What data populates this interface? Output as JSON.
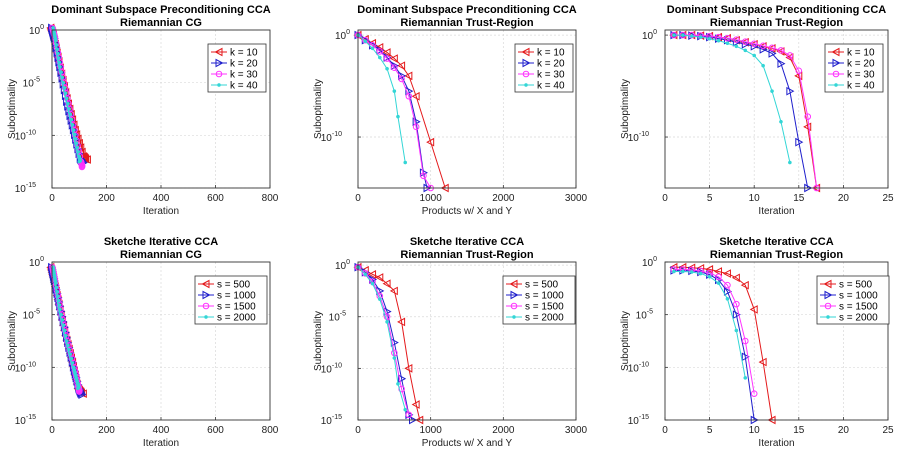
{
  "chart_data": [
    {
      "type": "line",
      "title": "Dominant Subspace Preconditioning CCA",
      "subtitle": "Riemannian CG",
      "xlabel": "Iteration",
      "ylabel": "Suboptimality",
      "xlim": [
        0,
        800
      ],
      "xticks": [
        "0",
        "200",
        "400",
        "600",
        "800"
      ],
      "yscale": "log",
      "ylim_exp": [
        -15,
        0
      ],
      "yticks": [
        {
          "m": "10",
          "e": "0",
          "v": 0
        },
        {
          "m": "10",
          "e": "-5",
          "v": -5
        },
        {
          "m": "10",
          "e": "-10",
          "v": -10
        },
        {
          "m": "10",
          "e": "-15",
          "v": -15
        }
      ],
      "grid": true,
      "legend_position": "top-right",
      "series": [
        {
          "name": "k = 10",
          "color": "#e41a1c",
          "marker": "triangle-left",
          "dense": true,
          "x": [
            0,
            10,
            30,
            60,
            90,
            120,
            130
          ],
          "log10_y": [
            0.2,
            -0.5,
            -3,
            -6.5,
            -9.5,
            -12,
            -12.3
          ]
        },
        {
          "name": "k = 20",
          "color": "#1f1fcc",
          "marker": "triangle-right",
          "dense": true,
          "x": [
            0,
            10,
            30,
            55,
            80,
            105,
            115
          ],
          "log10_y": [
            0.2,
            -0.8,
            -3.5,
            -6.8,
            -9.5,
            -12.2,
            -12.6
          ]
        },
        {
          "name": "k = 30",
          "color": "#ff33ff",
          "marker": "circle",
          "dense": true,
          "x": [
            0,
            10,
            30,
            55,
            80,
            105,
            110
          ],
          "log10_y": [
            0.2,
            -0.8,
            -3.5,
            -6.5,
            -9.5,
            -12.5,
            -13
          ]
        },
        {
          "name": "k = 40",
          "color": "#33d6d6",
          "marker": "dot",
          "dense": true,
          "x": [
            0,
            10,
            25,
            50,
            75,
            95,
            100
          ],
          "log10_y": [
            0.2,
            -1,
            -3.5,
            -6.5,
            -9.5,
            -12,
            -12.5
          ]
        }
      ]
    },
    {
      "type": "line",
      "title": "Dominant Subspace Preconditioning CCA",
      "subtitle": "Riemannian Trust-Region",
      "xlabel": "Products w/ X and Y",
      "ylabel": "Suboptimality",
      "xlim": [
        0,
        3000
      ],
      "xticks": [
        "0",
        "1000",
        "2000",
        "3000"
      ],
      "yscale": "log",
      "ylim_exp": [
        -15,
        0.5
      ],
      "yticks": [
        {
          "m": "10",
          "e": "0",
          "v": 0
        },
        {
          "m": "10",
          "e": "-10",
          "v": -10
        }
      ],
      "grid": true,
      "legend_position": "top-right",
      "series": [
        {
          "name": "k = 10",
          "color": "#e41a1c",
          "marker": "triangle-left",
          "x": [
            0,
            100,
            200,
            300,
            400,
            500,
            600,
            700,
            800,
            1000,
            1200
          ],
          "log10_y": [
            0,
            -0.4,
            -0.8,
            -1.2,
            -1.7,
            -2.3,
            -3,
            -4,
            -6,
            -10.5,
            -15
          ]
        },
        {
          "name": "k = 20",
          "color": "#1f1fcc",
          "marker": "triangle-right",
          "x": [
            0,
            100,
            200,
            300,
            400,
            500,
            600,
            700,
            800,
            900,
            950
          ],
          "log10_y": [
            0,
            -0.5,
            -1,
            -1.5,
            -2.2,
            -3,
            -4,
            -5.5,
            -8.5,
            -13.5,
            -15
          ]
        },
        {
          "name": "k = 30",
          "color": "#ff33ff",
          "marker": "circle",
          "x": [
            0,
            100,
            200,
            300,
            400,
            500,
            600,
            700,
            800,
            900,
            1000
          ],
          "log10_y": [
            0,
            -0.5,
            -1,
            -1.6,
            -2.3,
            -3.2,
            -4.3,
            -6,
            -9,
            -13.8,
            -15
          ]
        },
        {
          "name": "k = 40",
          "color": "#33d6d6",
          "marker": "dot",
          "x": [
            0,
            100,
            200,
            300,
            400,
            500,
            550,
            650
          ],
          "log10_y": [
            0,
            -0.6,
            -1.3,
            -2.2,
            -3.3,
            -5.5,
            -8,
            -12.5
          ]
        }
      ]
    },
    {
      "type": "line",
      "title": "Dominant Subspace Preconditioning CCA",
      "subtitle": "Riemannian Trust-Region",
      "xlabel": "Iteration",
      "ylabel": "Suboptimality",
      "xlim": [
        0,
        25
      ],
      "xticks": [
        "0",
        "5",
        "10",
        "15",
        "20",
        "25"
      ],
      "yscale": "log",
      "ylim_exp": [
        -15,
        0.5
      ],
      "yticks": [
        {
          "m": "10",
          "e": "0",
          "v": 0
        },
        {
          "m": "10",
          "e": "-10",
          "v": -10
        }
      ],
      "grid": true,
      "legend_position": "top-right",
      "series": [
        {
          "name": "k = 10",
          "color": "#e41a1c",
          "marker": "triangle-left",
          "x": [
            1,
            2,
            3,
            4,
            5,
            6,
            7,
            8,
            9,
            10,
            11,
            12,
            13,
            14,
            15,
            16,
            17
          ],
          "log10_y": [
            0,
            0,
            0,
            -0.05,
            -0.1,
            -0.2,
            -0.3,
            -0.5,
            -0.7,
            -0.9,
            -1.1,
            -1.3,
            -1.6,
            -2.2,
            -4,
            -9,
            -15
          ]
        },
        {
          "name": "k = 20",
          "color": "#1f1fcc",
          "marker": "triangle-right",
          "x": [
            1,
            2,
            3,
            4,
            5,
            6,
            7,
            8,
            9,
            10,
            11,
            12,
            13,
            14,
            15,
            16
          ],
          "log10_y": [
            0,
            0,
            -0.05,
            -0.1,
            -0.2,
            -0.35,
            -0.5,
            -0.7,
            -0.9,
            -1.1,
            -1.4,
            -1.8,
            -2.8,
            -5.5,
            -10.5,
            -15
          ]
        },
        {
          "name": "k = 30",
          "color": "#ff33ff",
          "marker": "circle",
          "x": [
            1,
            2,
            3,
            4,
            5,
            6,
            7,
            8,
            9,
            10,
            11,
            12,
            13,
            14,
            15,
            16,
            17
          ],
          "log10_y": [
            0,
            0,
            0,
            -0.05,
            -0.1,
            -0.2,
            -0.3,
            -0.45,
            -0.65,
            -0.85,
            -1.05,
            -1.25,
            -1.5,
            -2,
            -3.5,
            -8,
            -15
          ]
        },
        {
          "name": "k = 40",
          "color": "#33d6d6",
          "marker": "dot",
          "x": [
            1,
            2,
            3,
            4,
            5,
            6,
            7,
            8,
            9,
            10,
            11,
            12,
            13,
            14
          ],
          "log10_y": [
            0,
            0,
            -0.1,
            -0.2,
            -0.35,
            -0.55,
            -0.8,
            -1.1,
            -1.5,
            -2,
            -3,
            -5.5,
            -8.5,
            -12.5
          ]
        }
      ]
    },
    {
      "type": "line",
      "title": "Sketche Iterative CCA",
      "subtitle": "Riemannian CG",
      "xlabel": "Iteration",
      "ylabel": "Suboptimality",
      "xlim": [
        0,
        800
      ],
      "xticks": [
        "0",
        "200",
        "400",
        "600",
        "800"
      ],
      "yscale": "log",
      "ylim_exp": [
        -15,
        0
      ],
      "yticks": [
        {
          "m": "10",
          "e": "0",
          "v": 0
        },
        {
          "m": "10",
          "e": "-5",
          "v": -5
        },
        {
          "m": "10",
          "e": "-10",
          "v": -10
        },
        {
          "m": "10",
          "e": "-15",
          "v": -15
        }
      ],
      "grid": true,
      "legend_position": "top-right",
      "series": [
        {
          "name": "s = 500",
          "color": "#e41a1c",
          "marker": "triangle-left",
          "dense": true,
          "x": [
            0,
            10,
            30,
            55,
            80,
            100,
            115
          ],
          "log10_y": [
            -0.5,
            -1.5,
            -4,
            -7,
            -9.5,
            -12,
            -12.5
          ]
        },
        {
          "name": "s = 1000",
          "color": "#1f1fcc",
          "marker": "triangle-right",
          "dense": true,
          "x": [
            0,
            10,
            30,
            55,
            80,
            100,
            110
          ],
          "log10_y": [
            -0.5,
            -1.8,
            -4.2,
            -7.2,
            -10,
            -12,
            -12.6
          ]
        },
        {
          "name": "s = 1500",
          "color": "#ff33ff",
          "marker": "circle",
          "dense": true,
          "x": [
            0,
            10,
            30,
            55,
            80,
            95,
            100
          ],
          "log10_y": [
            -0.5,
            -1.8,
            -4.5,
            -7.5,
            -10,
            -11.8,
            -12.3
          ]
        },
        {
          "name": "s = 2000",
          "color": "#33d6d6",
          "marker": "dot",
          "dense": true,
          "x": [
            0,
            10,
            25,
            50,
            75,
            90,
            95
          ],
          "log10_y": [
            -0.5,
            -2,
            -4.5,
            -7.5,
            -10,
            -11.5,
            -12
          ]
        }
      ]
    },
    {
      "type": "line",
      "title": "Sketche Iterative CCA",
      "subtitle": "Riemannian Trust-Region",
      "xlabel": "Products w/ X and Y",
      "ylabel": "Suboptimality",
      "xlim": [
        0,
        3000
      ],
      "xticks": [
        "0",
        "1000",
        "2000",
        "3000"
      ],
      "yscale": "log",
      "ylim_exp": [
        -15,
        0.3
      ],
      "yticks": [
        {
          "m": "10",
          "e": "0",
          "v": 0
        },
        {
          "m": "10",
          "e": "-5",
          "v": -5
        },
        {
          "m": "10",
          "e": "-10",
          "v": -10
        },
        {
          "m": "10",
          "e": "-15",
          "v": -15
        }
      ],
      "grid": true,
      "legend_position": "top-right",
      "series": [
        {
          "name": "s = 500",
          "color": "#e41a1c",
          "marker": "triangle-left",
          "x": [
            0,
            100,
            200,
            300,
            400,
            500,
            600,
            700,
            800,
            850
          ],
          "log10_y": [
            -0.2,
            -0.5,
            -0.9,
            -1.2,
            -1.8,
            -2.5,
            -5.5,
            -10,
            -13.5,
            -15
          ]
        },
        {
          "name": "s = 1000",
          "color": "#1f1fcc",
          "marker": "triangle-right",
          "x": [
            0,
            100,
            200,
            300,
            400,
            500,
            600,
            700,
            750
          ],
          "log10_y": [
            -0.2,
            -0.7,
            -1.4,
            -2.5,
            -4.5,
            -7.5,
            -11,
            -14.5,
            -15
          ]
        },
        {
          "name": "s = 1500",
          "color": "#ff33ff",
          "marker": "circle",
          "x": [
            0,
            100,
            200,
            300,
            400,
            500,
            600,
            700
          ],
          "log10_y": [
            -0.2,
            -0.8,
            -1.6,
            -3,
            -5,
            -8.5,
            -12,
            -14.5
          ]
        },
        {
          "name": "s = 2000",
          "color": "#33d6d6",
          "marker": "dot",
          "x": [
            0,
            100,
            200,
            300,
            400,
            500,
            550,
            650
          ],
          "log10_y": [
            -0.2,
            -0.9,
            -1.8,
            -3.3,
            -5.5,
            -9,
            -11.5,
            -14
          ]
        }
      ]
    },
    {
      "type": "line",
      "title": "Sketche Iterative CCA",
      "subtitle": "Riemannian Trust-Region",
      "xlabel": "Iteration",
      "ylabel": "Suboptimality",
      "xlim": [
        0,
        25
      ],
      "xticks": [
        "0",
        "5",
        "10",
        "15",
        "20",
        "25"
      ],
      "yscale": "log",
      "ylim_exp": [
        -15,
        0
      ],
      "yticks": [
        {
          "m": "10",
          "e": "0",
          "v": 0
        },
        {
          "m": "10",
          "e": "-5",
          "v": -5
        },
        {
          "m": "10",
          "e": "-10",
          "v": -10
        },
        {
          "m": "10",
          "e": "-15",
          "v": -15
        }
      ],
      "grid": true,
      "legend_position": "top-right",
      "series": [
        {
          "name": "s = 500",
          "color": "#e41a1c",
          "marker": "triangle-left",
          "x": [
            1,
            2,
            3,
            4,
            5,
            6,
            7,
            8,
            9,
            10,
            11,
            12
          ],
          "log10_y": [
            -0.5,
            -0.5,
            -0.55,
            -0.6,
            -0.7,
            -0.9,
            -1.1,
            -1.5,
            -2.2,
            -4.5,
            -9.5,
            -15
          ]
        },
        {
          "name": "s = 1000",
          "color": "#1f1fcc",
          "marker": "triangle-right",
          "x": [
            1,
            2,
            3,
            4,
            5,
            6,
            7,
            8,
            9,
            10
          ],
          "log10_y": [
            -0.8,
            -0.8,
            -0.85,
            -0.95,
            -1.2,
            -1.7,
            -2.8,
            -5,
            -9,
            -15
          ]
        },
        {
          "name": "s = 1500",
          "color": "#ff33ff",
          "marker": "circle",
          "x": [
            1,
            2,
            3,
            4,
            5,
            6,
            7,
            8,
            9,
            10
          ],
          "log10_y": [
            -0.7,
            -0.7,
            -0.75,
            -0.85,
            -1.05,
            -1.4,
            -2.2,
            -4,
            -7.5,
            -12.5
          ]
        },
        {
          "name": "s = 2000",
          "color": "#33d6d6",
          "marker": "dot",
          "x": [
            1,
            2,
            3,
            4,
            5,
            6,
            7,
            8,
            9
          ],
          "log10_y": [
            -0.9,
            -0.9,
            -0.95,
            -1.1,
            -1.4,
            -2,
            -3.5,
            -6.5,
            -11
          ]
        }
      ]
    }
  ]
}
